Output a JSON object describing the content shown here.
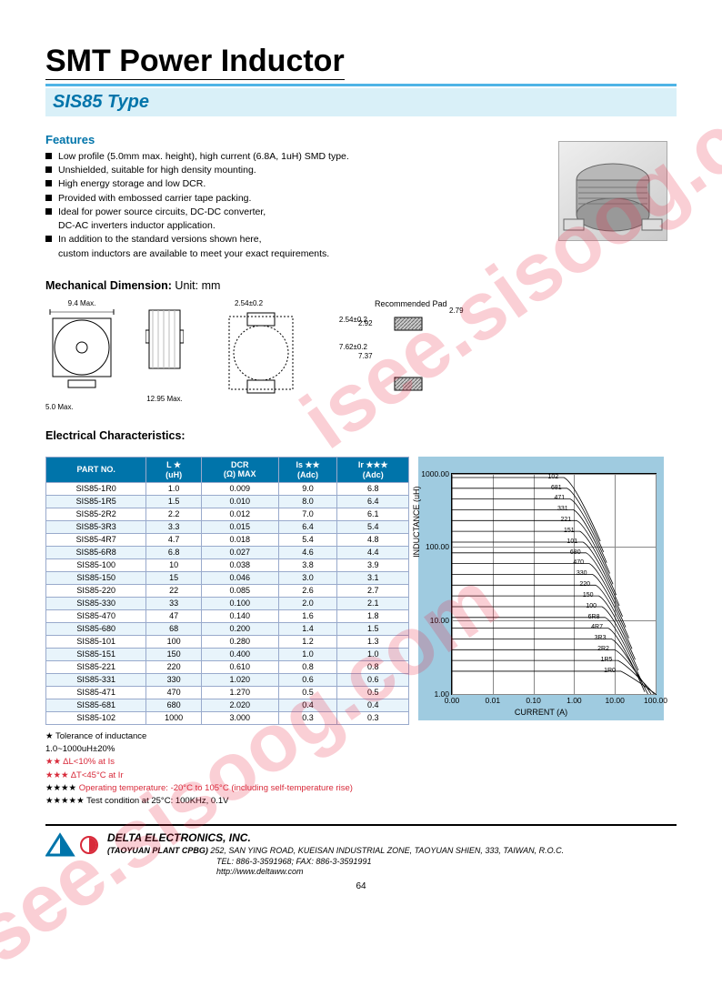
{
  "title": "SMT Power Inductor",
  "subtitle": "SIS85 Type",
  "watermark_text": "isee.sisoog.com",
  "features_label": "Features",
  "features": [
    "Low profile (5.0mm max. height), high current (6.8A, 1uH) SMD type.",
    "Unshielded, suitable for high density mounting.",
    "High energy storage and low DCR.",
    "Provided with embossed carrier tape packing.",
    "Ideal for power source circuits, DC-DC converter,\nDC-AC inverters inductor application.",
    "In addition to the standard versions shown here,\ncustom inductors are available to meet your exact requirements."
  ],
  "mech_label": "Mechanical Dimension:",
  "mech_unit": "Unit: mm",
  "mech_dims": {
    "width_max": "9.4 Max.",
    "height_max": "5.0 Max.",
    "depth_max": "12.95 Max.",
    "pad_w": "2.54±0.2",
    "pad_h1": "2.54±0.2",
    "pad_h2": "7.62±0.2",
    "pad_label": "Recommended Pad",
    "rp_w": "2.79",
    "rp_h1": "2.92",
    "rp_h2": "7.37"
  },
  "ec_label": "Electrical Characteristics:",
  "table": {
    "headers": [
      "PART NO.",
      "L ★\n(uH)",
      "DCR\n(Ω) MAX",
      "Is ★★\n(Adc)",
      "Ir ★★★\n(Adc)"
    ],
    "header_bg": "#0074aa",
    "header_color": "#ffffff",
    "row_colors": [
      "#ffffff",
      "#e8f4fb"
    ],
    "border_color": "#9ac",
    "rows": [
      [
        "SIS85-1R0",
        "1.0",
        "0.009",
        "9.0",
        "6.8"
      ],
      [
        "SIS85-1R5",
        "1.5",
        "0.010",
        "8.0",
        "6.4"
      ],
      [
        "SIS85-2R2",
        "2.2",
        "0.012",
        "7.0",
        "6.1"
      ],
      [
        "SIS85-3R3",
        "3.3",
        "0.015",
        "6.4",
        "5.4"
      ],
      [
        "SIS85-4R7",
        "4.7",
        "0.018",
        "5.4",
        "4.8"
      ],
      [
        "SIS85-6R8",
        "6.8",
        "0.027",
        "4.6",
        "4.4"
      ],
      [
        "SIS85-100",
        "10",
        "0.038",
        "3.8",
        "3.9"
      ],
      [
        "SIS85-150",
        "15",
        "0.046",
        "3.0",
        "3.1"
      ],
      [
        "SIS85-220",
        "22",
        "0.085",
        "2.6",
        "2.7"
      ],
      [
        "SIS85-330",
        "33",
        "0.100",
        "2.0",
        "2.1"
      ],
      [
        "SIS85-470",
        "47",
        "0.140",
        "1.6",
        "1.8"
      ],
      [
        "SIS85-680",
        "68",
        "0.200",
        "1.4",
        "1.5"
      ],
      [
        "SIS85-101",
        "100",
        "0.280",
        "1.2",
        "1.3"
      ],
      [
        "SIS85-151",
        "150",
        "0.400",
        "1.0",
        "1.0"
      ],
      [
        "SIS85-221",
        "220",
        "0.610",
        "0.8",
        "0.8"
      ],
      [
        "SIS85-331",
        "330",
        "1.020",
        "0.6",
        "0.6"
      ],
      [
        "SIS85-471",
        "470",
        "1.270",
        "0.5",
        "0.5"
      ],
      [
        "SIS85-681",
        "680",
        "2.020",
        "0.4",
        "0.4"
      ],
      [
        "SIS85-102",
        "1000",
        "3.000",
        "0.3",
        "0.3"
      ]
    ]
  },
  "notes": {
    "n1_star": "★",
    "n1": "Tolerance of inductance\n1.0~1000uH±20%",
    "n2_star": "★★",
    "n2": "ΔL<10% at Is",
    "n3_star": "★★★",
    "n3": "ΔT<45°C  at Ir",
    "n4_star": "★★★★",
    "n4": "Operating temperature: -20°C to 105°C  (including self-temperature rise)",
    "n5_star": "★★★★★",
    "n5": "Test condition at 25°C: 100KHz, 0.1V"
  },
  "chart": {
    "bg_color": "#9fcbe0",
    "plot_bg": "#ffffff",
    "grid_color": "#888888",
    "line_color": "#000000",
    "ylabel": "INDUCTANCE (uH)",
    "xlabel": "CURRENT (A)",
    "yscale": "log",
    "xscale": "log",
    "ylim": [
      1,
      1000
    ],
    "xlim": [
      0.001,
      100
    ],
    "yticks": [
      "1.00",
      "10.00",
      "100.00",
      "1000.00"
    ],
    "xticks": [
      "0.00",
      "0.01",
      "0.10",
      "1.00",
      "10.00",
      "100.00"
    ],
    "series_labels": [
      "102",
      "681",
      "471",
      "331",
      "221",
      "151",
      "101",
      "680",
      "470",
      "330",
      "220",
      "150",
      "100",
      "6R8",
      "4R7",
      "3R3",
      "2R2",
      "1R5",
      "1R0"
    ]
  },
  "footer": {
    "company": "DELTA ELECTRONICS, INC.",
    "plant": "(TAOYUAN PLANT CPBG)",
    "address": "252, SAN YING ROAD, KUEISAN INDUSTRIAL ZONE, TAOYUAN SHIEN, 333, TAIWAN, R.O.C.",
    "tel": "TEL: 886-3-3591968; FAX: 886-3-3591991",
    "url": "http://www.deltaww.com",
    "logo_colors": [
      "#0074aa",
      "#d82a3a"
    ],
    "page_number": "64"
  }
}
